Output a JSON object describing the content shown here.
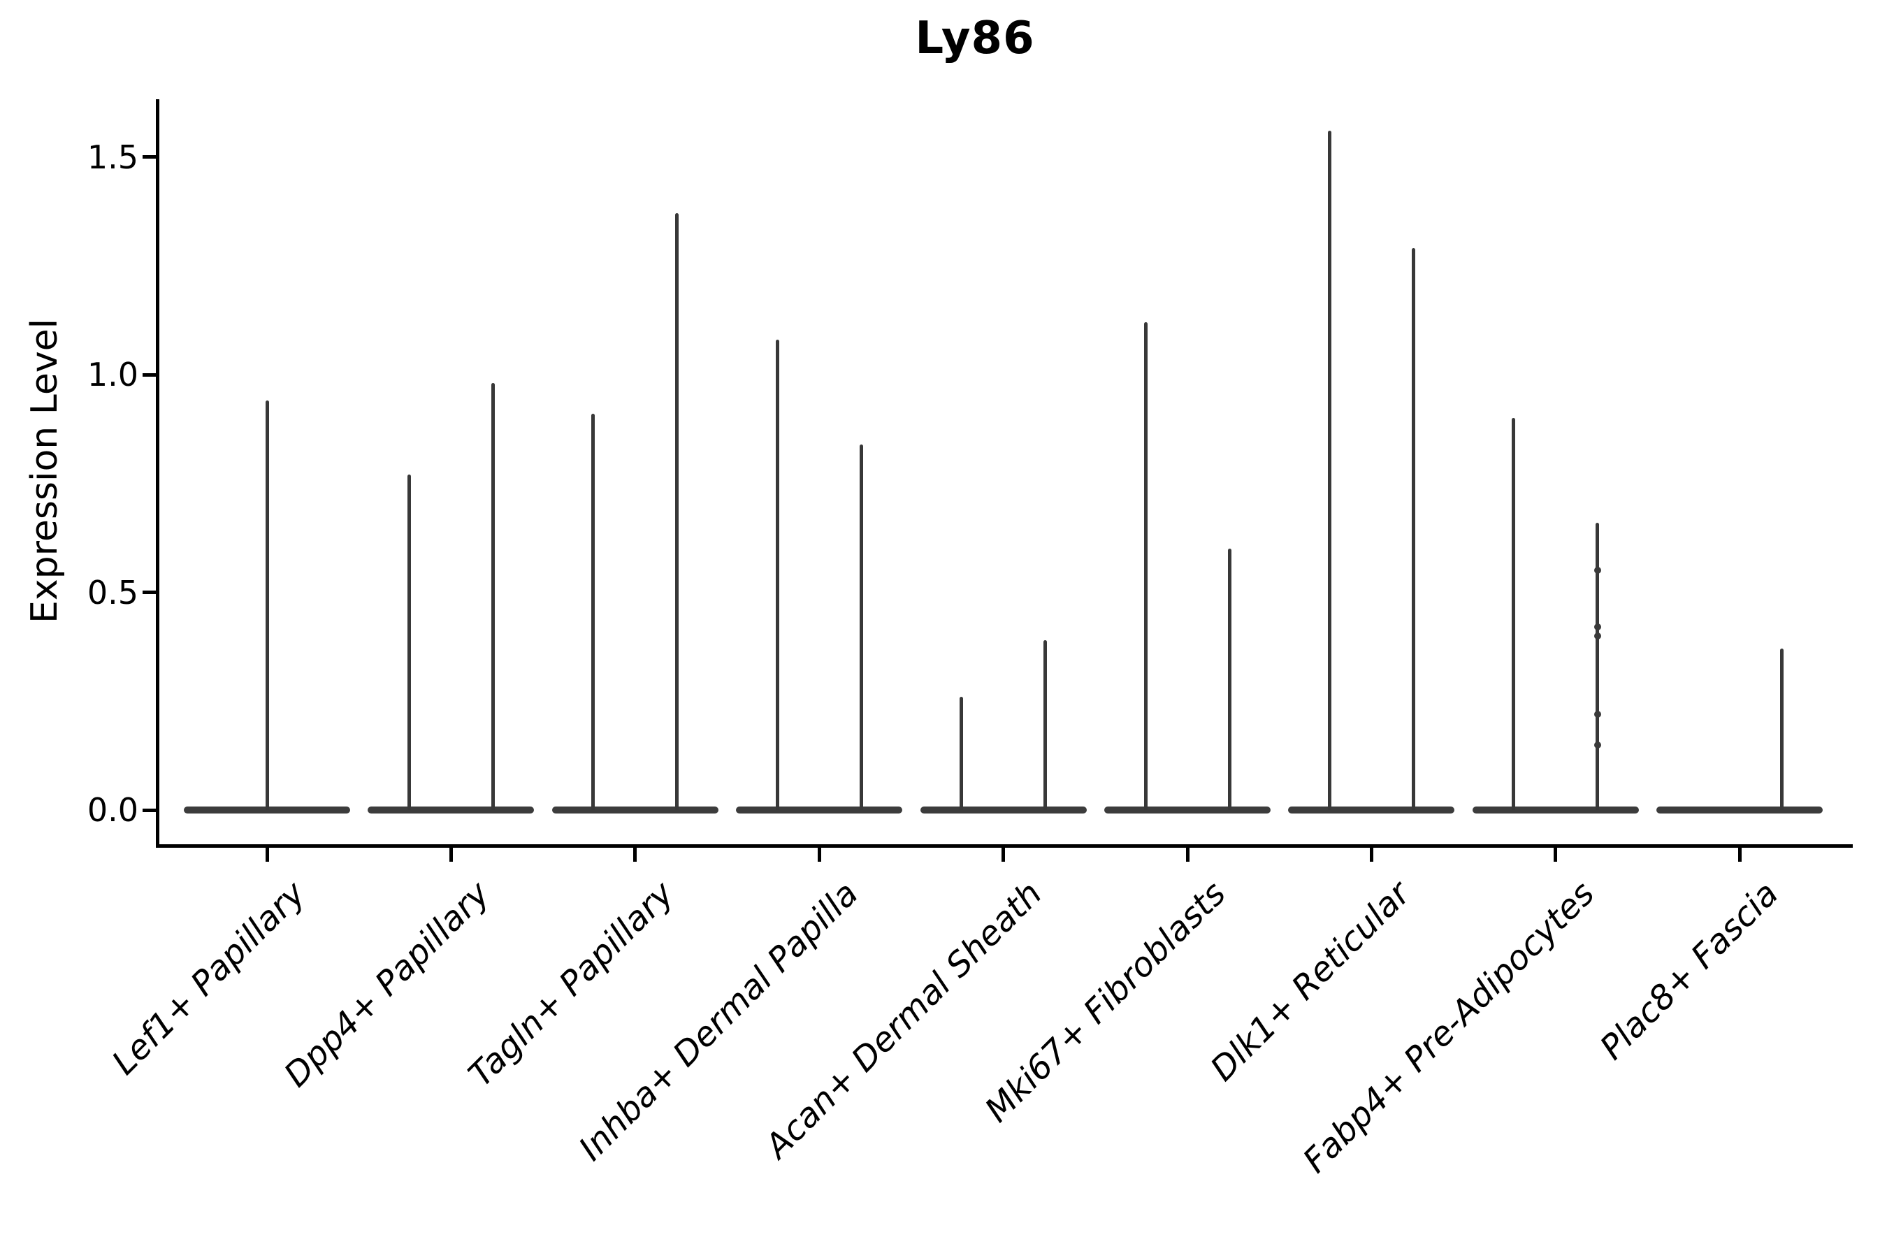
{
  "chart_data": {
    "type": "violin",
    "title": "Ly86",
    "ylabel": "Expression Level",
    "xlabel": "",
    "ylim": [
      0,
      1.63
    ],
    "yticks": [
      0.0,
      0.5,
      1.0,
      1.5
    ],
    "ytick_labels": [
      "0.0",
      "0.5",
      "1.0",
      "1.5"
    ],
    "grid": "off",
    "legend": "none",
    "marker_color": "#383838",
    "axis_color": "#000000",
    "categories": [
      "Lef1+ Papillary",
      "Dpp4+ Papillary",
      "Tagln+ Papillary",
      "Inhba+ Dermal Papilla",
      "Acan+ Dermal Sheath",
      "Mki67+ Fibroblasts",
      "Dlk1+ Reticular",
      "Fabp4+ Pre-Adipocytes",
      "Plac8+ Fascia"
    ],
    "description": "Violin plot of Ly86 expression; every violin is flat at 0 with a thin density spike reaching the maximum expression value. Categories 2-8 contain two dodged violins (left/right groups); category 1 has a single centered violin; category 9 only shows a spike for the right group.",
    "violins": [
      {
        "category": "Lef1+ Papillary",
        "spikes": [
          {
            "group": "center",
            "max": 0.94
          }
        ]
      },
      {
        "category": "Dpp4+ Papillary",
        "spikes": [
          {
            "group": "left",
            "max": 0.77
          },
          {
            "group": "right",
            "max": 0.98
          }
        ]
      },
      {
        "category": "Tagln+ Papillary",
        "spikes": [
          {
            "group": "left",
            "max": 0.91
          },
          {
            "group": "right",
            "max": 1.37
          }
        ]
      },
      {
        "category": "Inhba+ Dermal Papilla",
        "spikes": [
          {
            "group": "left",
            "max": 1.08
          },
          {
            "group": "right",
            "max": 0.84
          }
        ]
      },
      {
        "category": "Acan+ Dermal Sheath",
        "spikes": [
          {
            "group": "left",
            "max": 0.26
          },
          {
            "group": "right",
            "max": 0.39
          }
        ]
      },
      {
        "category": "Mki67+ Fibroblasts",
        "spikes": [
          {
            "group": "left",
            "max": 1.12
          },
          {
            "group": "right",
            "max": 0.6
          }
        ]
      },
      {
        "category": "Dlk1+ Reticular",
        "spikes": [
          {
            "group": "left",
            "max": 1.56
          },
          {
            "group": "right",
            "max": 1.29
          }
        ]
      },
      {
        "category": "Fabp4+ Pre-Adipocytes",
        "spikes": [
          {
            "group": "left",
            "max": 0.9
          },
          {
            "group": "right",
            "max": 0.66,
            "points": [
              0.55,
              0.42,
              0.4,
              0.22,
              0.15
            ]
          }
        ]
      },
      {
        "category": "Plac8+ Fascia",
        "spikes": [
          {
            "group": "right",
            "max": 0.37
          }
        ]
      }
    ]
  }
}
